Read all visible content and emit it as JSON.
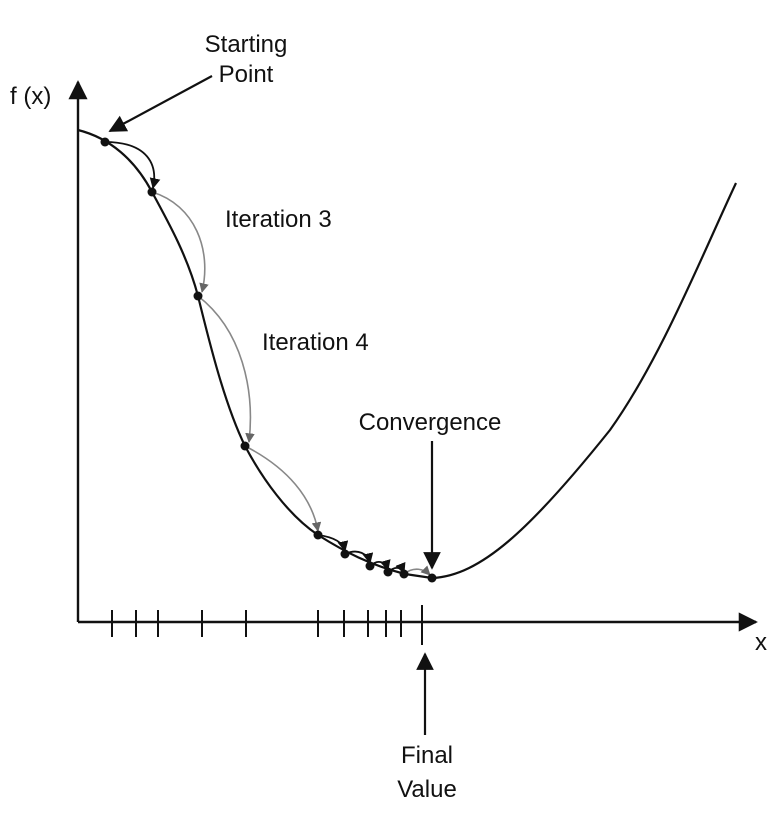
{
  "labels": {
    "y_axis": "f (x)",
    "x_axis": "x",
    "starting_point_line1": "Starting",
    "starting_point_line2": "Point",
    "iteration3": "Iteration 3",
    "iteration4": "Iteration 4",
    "convergence": "Convergence",
    "final_value_line1": "Final",
    "final_value_line2": "Value"
  },
  "colors": {
    "ink": "#111111",
    "hop_arrow": "#888888",
    "background": "#ffffff"
  }
}
